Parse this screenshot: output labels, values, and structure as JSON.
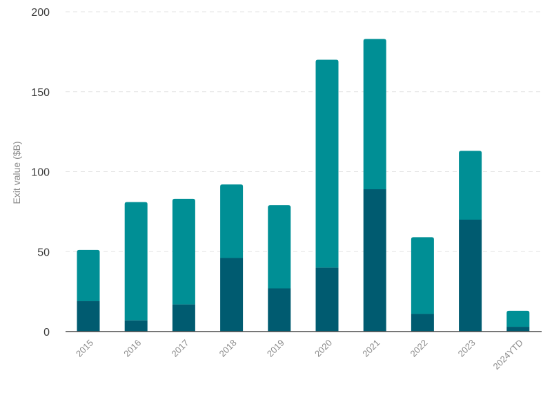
{
  "chart_data": {
    "type": "bar",
    "stacked": true,
    "title": "",
    "xlabel": "",
    "ylabel": "Exit value ($B)",
    "ylim": [
      0,
      200
    ],
    "yticks": [
      0,
      50,
      100,
      150,
      200
    ],
    "grid": true,
    "categories": [
      "2015",
      "2016",
      "2017",
      "2018",
      "2019",
      "2020",
      "2021",
      "2022",
      "2023",
      "2024YTD"
    ],
    "series": [
      {
        "values": [
          19,
          7,
          17,
          46,
          27,
          40,
          89,
          11,
          70,
          3
        ],
        "color": "#005b70"
      },
      {
        "values": [
          32,
          74,
          66,
          46,
          52,
          130,
          94,
          48,
          43,
          10
        ],
        "color": "#008f95"
      }
    ]
  }
}
